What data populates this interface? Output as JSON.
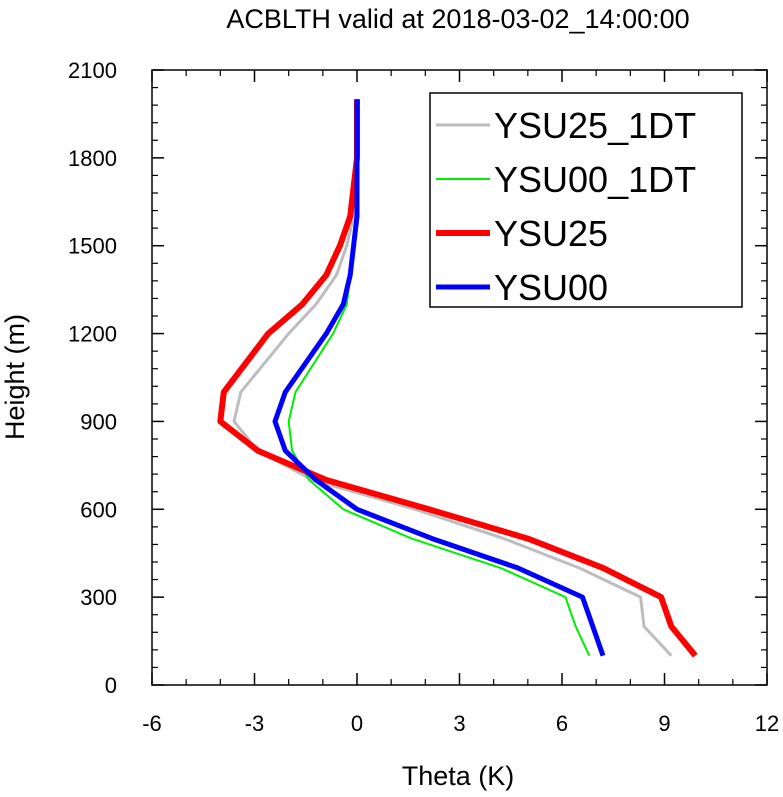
{
  "chart_data": {
    "type": "line",
    "title": "ACBLTH valid at 2018-03-02_14:00:00",
    "xlabel": "Theta (K)",
    "ylabel": "Height (m)",
    "xlim": [
      -6,
      12
    ],
    "ylim": [
      0,
      2100
    ],
    "xticks": [
      -6,
      -3,
      0,
      3,
      6,
      9,
      12
    ],
    "yticks": [
      0,
      300,
      600,
      900,
      1200,
      1500,
      1800,
      2100
    ],
    "x_tick_labels": [
      "-6",
      "-3",
      "0",
      "3",
      "6",
      "9",
      "12"
    ],
    "y_tick_labels": [
      "0",
      "300",
      "600",
      "900",
      "1200",
      "1500",
      "1800",
      "2100"
    ],
    "grid": false,
    "legend_position": "top-right",
    "series": [
      {
        "name": "YSU25_1DT",
        "color": "#bdbdbd",
        "width": 3,
        "points": [
          [
            9.2,
            100
          ],
          [
            8.4,
            200
          ],
          [
            8.3,
            300
          ],
          [
            6.5,
            400
          ],
          [
            4.3,
            500
          ],
          [
            1.7,
            600
          ],
          [
            -1.3,
            700
          ],
          [
            -2.9,
            800
          ],
          [
            -3.6,
            900
          ],
          [
            -3.4,
            1000
          ],
          [
            -2.0,
            1200
          ],
          [
            -1.2,
            1300
          ],
          [
            -0.6,
            1400
          ],
          [
            -0.3,
            1500
          ],
          [
            -0.1,
            1600
          ],
          [
            0.0,
            1800
          ],
          [
            0.0,
            2000
          ]
        ]
      },
      {
        "name": "YSU00_1DT",
        "color": "#00ee00",
        "width": 2,
        "points": [
          [
            6.8,
            100
          ],
          [
            6.4,
            200
          ],
          [
            6.1,
            300
          ],
          [
            4.2,
            400
          ],
          [
            1.6,
            500
          ],
          [
            -0.4,
            600
          ],
          [
            -1.4,
            700
          ],
          [
            -1.9,
            800
          ],
          [
            -2.0,
            900
          ],
          [
            -1.8,
            1000
          ],
          [
            -0.7,
            1200
          ],
          [
            -0.3,
            1300
          ],
          [
            -0.2,
            1400
          ],
          [
            -0.1,
            1500
          ],
          [
            0.0,
            1600
          ],
          [
            0.0,
            1800
          ],
          [
            0.0,
            2000
          ]
        ]
      },
      {
        "name": "YSU25",
        "color": "#ff0000",
        "width": 6,
        "points": [
          [
            9.9,
            100
          ],
          [
            9.2,
            200
          ],
          [
            8.9,
            300
          ],
          [
            7.2,
            400
          ],
          [
            5.0,
            500
          ],
          [
            2.1,
            600
          ],
          [
            -0.9,
            700
          ],
          [
            -2.9,
            800
          ],
          [
            -4.0,
            900
          ],
          [
            -3.9,
            1000
          ],
          [
            -2.6,
            1200
          ],
          [
            -1.6,
            1300
          ],
          [
            -0.9,
            1400
          ],
          [
            -0.5,
            1500
          ],
          [
            -0.2,
            1600
          ],
          [
            0.0,
            1800
          ],
          [
            0.0,
            2000
          ]
        ]
      },
      {
        "name": "YSU00",
        "color": "#0000ff",
        "width": 5,
        "points": [
          [
            7.2,
            100
          ],
          [
            6.9,
            200
          ],
          [
            6.6,
            300
          ],
          [
            4.7,
            400
          ],
          [
            2.2,
            500
          ],
          [
            0.0,
            600
          ],
          [
            -1.2,
            700
          ],
          [
            -2.1,
            800
          ],
          [
            -2.4,
            900
          ],
          [
            -2.1,
            1000
          ],
          [
            -0.9,
            1200
          ],
          [
            -0.4,
            1300
          ],
          [
            -0.2,
            1400
          ],
          [
            -0.1,
            1500
          ],
          [
            0.0,
            1600
          ],
          [
            0.0,
            1800
          ],
          [
            0.0,
            2000
          ]
        ]
      }
    ]
  }
}
